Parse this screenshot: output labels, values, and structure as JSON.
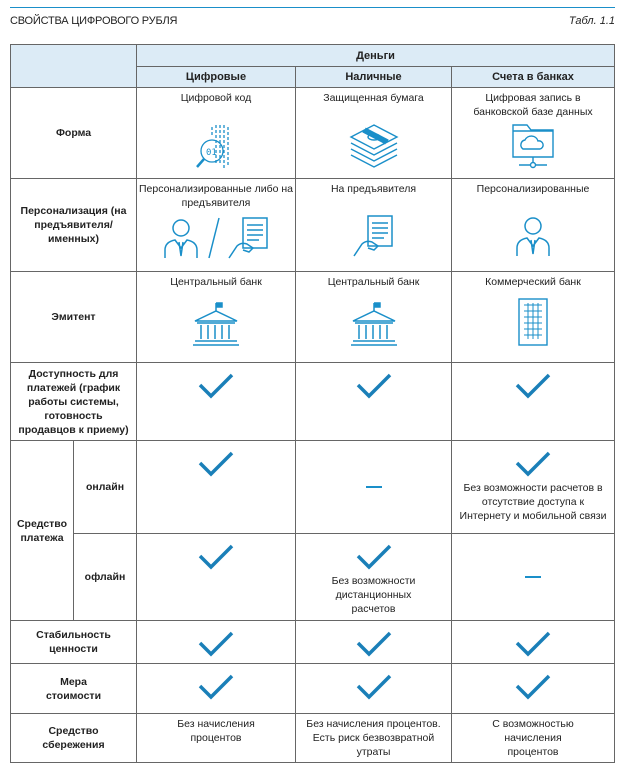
{
  "header": {
    "title": "СВОЙСТВА ЦИФРОВОГО РУБЛЯ",
    "table_no": "Табл. 1.1"
  },
  "columns": {
    "group": "Деньги",
    "c1": "Цифровые",
    "c2": "Наличные",
    "c3": "Счета в банках"
  },
  "rows": {
    "form": {
      "label": "Форма",
      "c1": "Цифровой код",
      "c2": "Защищенная бумага",
      "c3": "Цифровая запись в банковской базе данных",
      "icons": [
        "digital-code-icon",
        "banknotes-icon",
        "cloud-folder-icon"
      ]
    },
    "personal": {
      "label": "Персонализация (на предъявителя/ именных)",
      "c1": "Персонализированные либо на предъявителя",
      "c2": "На предъявителя",
      "c3": "Персонализированные"
    },
    "issuer": {
      "label": "Эмитент",
      "c1": "Центральный банк",
      "c2": "Центральный банк",
      "c3": "Коммерческий банк"
    },
    "availability": {
      "label": "Доступность для платежей (график работы системы, готовность продавцов к приему)"
    },
    "payment": {
      "label": "Средство платежа",
      "online": "онлайн",
      "offline": "офлайн",
      "online_c3": "Без возможности расчетов в отсутствие доступа к Интернету и мобильной связи",
      "offline_c2": "Без возможности дистанционных расчетов"
    },
    "stability": {
      "label": "Стабильность ценности"
    },
    "measure": {
      "label": "Мера стоимости"
    },
    "savings": {
      "label": "Средство сбережения",
      "c1": "Без начисления процентов",
      "c2": "Без начисления процентов. Есть риск безвозвратной утраты",
      "c3": "С возможностью начисления процентов"
    }
  },
  "colors": {
    "accent": "#1a8fc9",
    "header_bg": "#dcebf6"
  }
}
